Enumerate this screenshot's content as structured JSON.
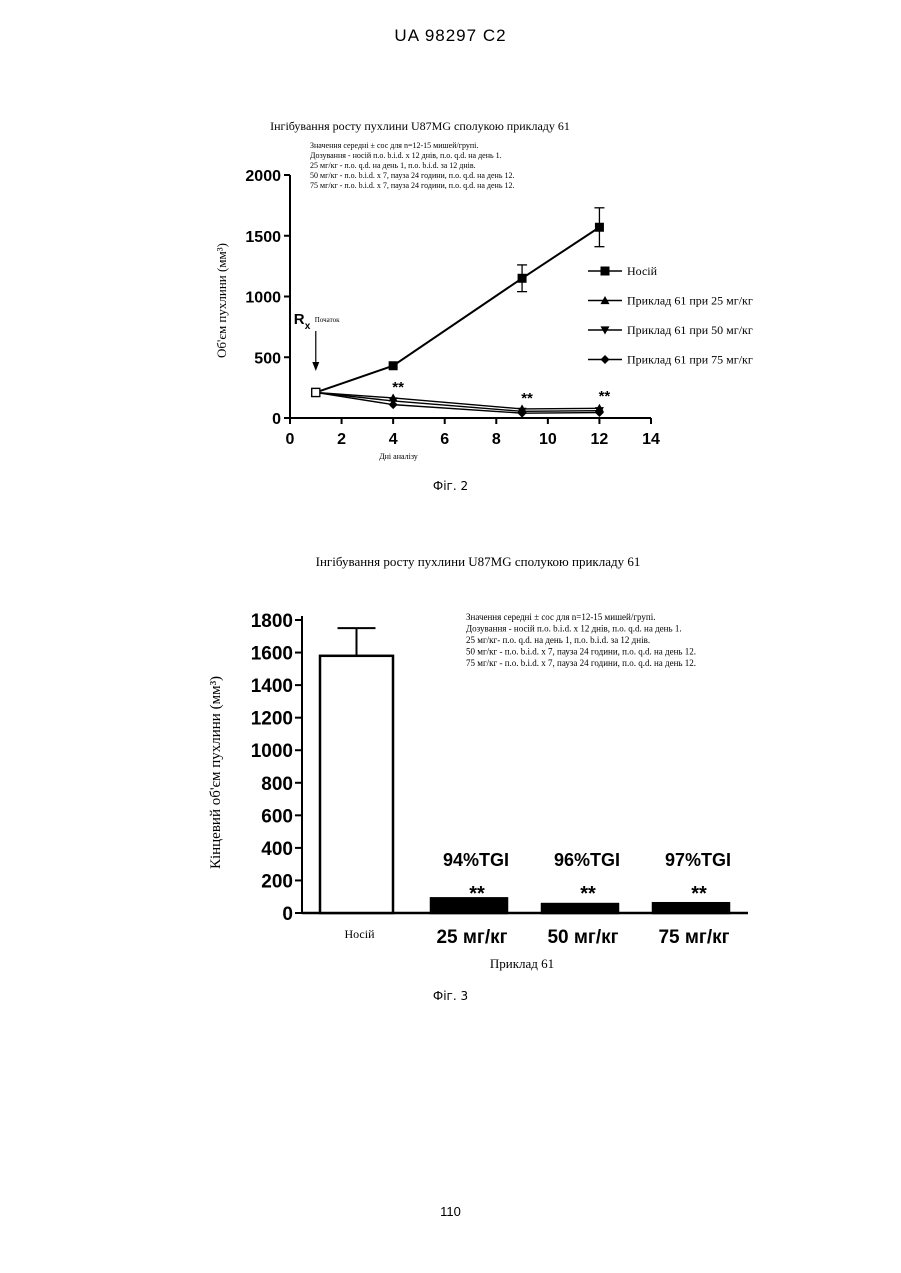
{
  "header": {
    "text": "UA 98297 C2"
  },
  "page_number": "110",
  "figures": [
    {
      "label": "Фіг. 2"
    },
    {
      "label": "Фіг. 3"
    }
  ],
  "chart_data": [
    {
      "type": "line",
      "title": "Інгібування росту пухлини U87MG сполукою прикладу 61",
      "notes": [
        "Значення середні ± сос для n=12-15 мишей/групі.",
        "Дозування - носій п.о. b.i.d. x 12 днів, п.о. q.d. на день 1.",
        "25 мг/кг - п.о. q.d. на день 1, п.о. b.i.d. за 12 днів.",
        "50 мг/кг - п.о. b.i.d. x 7, пауза 24 години, п.о. q.d. на день 12.",
        "75 мг/кг - п.о. b.i.d. x 7, пауза 24 години, п.о. q.d. на день 12."
      ],
      "xlabel": "Дні аналізу",
      "ylabel": "Об'єм пухлини (мм³)",
      "xlim": [
        0,
        14
      ],
      "ylim": [
        0,
        2000
      ],
      "xticks": [
        "0",
        "2",
        "4",
        "6",
        "8",
        "10",
        "12",
        "14"
      ],
      "yticks": [
        "0",
        "500",
        "1000",
        "1500",
        "2000"
      ],
      "annotation": {
        "rx": "R",
        "rx_sub": "x",
        "start": "Початок",
        "day": 1
      },
      "significance": [
        {
          "x": 4,
          "label": "**"
        },
        {
          "x": 9,
          "label": "**"
        },
        {
          "x": 12,
          "label": "**"
        }
      ],
      "series": [
        {
          "name": "Носій",
          "marker": "square",
          "x": [
            1,
            4,
            9,
            12
          ],
          "y": [
            210,
            430,
            1150,
            1570
          ],
          "err": [
            0,
            0,
            110,
            160
          ]
        },
        {
          "name": "Приклад 61 при 25 мг/кг",
          "marker": "triangle-up",
          "x": [
            1,
            4,
            9,
            12
          ],
          "y": [
            210,
            165,
            75,
            80
          ],
          "err": [
            0,
            0,
            0,
            0
          ]
        },
        {
          "name": "Приклад 61 при 50 мг/кг",
          "marker": "triangle-down",
          "x": [
            1,
            4,
            9,
            12
          ],
          "y": [
            210,
            140,
            55,
            60
          ],
          "err": [
            0,
            0,
            0,
            0
          ]
        },
        {
          "name": "Приклад 61 при 75 мг/кг",
          "marker": "diamond",
          "x": [
            1,
            4,
            9,
            12
          ],
          "y": [
            210,
            110,
            40,
            45
          ],
          "err": [
            0,
            0,
            0,
            0
          ]
        }
      ],
      "legend_position": "right"
    },
    {
      "type": "bar",
      "title": "Інгібування росту пухлини U87MG сполукою прикладу 61",
      "notes": [
        "Значення середні ± сос для n=12-15 мишей/групі.",
        "Дозування - носій п.о. b.i.d. x 12 днів, п.о. q.d. на день 1.",
        "25 мг/кг- п.о. q.d. на день 1, п.о. b.i.d. за 12 днів.",
        "50 мг/кг - п.о. b.i.d. x 7, пауза 24 години, п.о. q.d. на день 12.",
        "75 мг/кг - п.о. b.i.d. x 7, пауза 24 години, п.о. q.d. на день 12."
      ],
      "xlabel": "Приклад 61",
      "ylabel": "Кінцевий об'єм пухлини (мм³)",
      "ylim": [
        0,
        1800
      ],
      "yticks": [
        "0",
        "200",
        "400",
        "600",
        "800",
        "1000",
        "1200",
        "1400",
        "1600",
        "1800"
      ],
      "categories": [
        "Носій",
        "25 мг/кг",
        "50 мг/кг",
        "75 мг/кг"
      ],
      "values": [
        1580,
        90,
        55,
        60
      ],
      "errors": [
        170,
        0,
        0,
        0
      ],
      "fills": [
        "#ffffff",
        "#000000",
        "#000000",
        "#000000"
      ],
      "tgi_labels": [
        "",
        "94%TGI",
        "96%TGI",
        "97%TGI"
      ],
      "significance": [
        "",
        "**",
        "**",
        "**"
      ]
    }
  ]
}
